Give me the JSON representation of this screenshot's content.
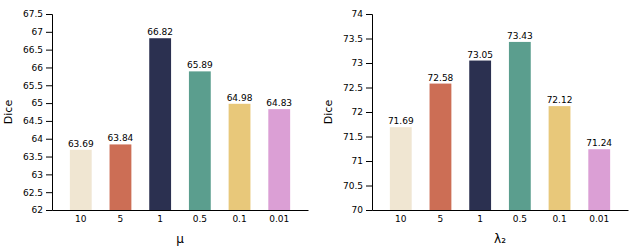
{
  "chart_data": [
    {
      "type": "bar",
      "categories": [
        "10",
        "5",
        "1",
        "0.5",
        "0.1",
        "0.01"
      ],
      "values": [
        63.69,
        63.84,
        66.82,
        65.89,
        64.98,
        64.83
      ],
      "colors": [
        "#f0e6d2",
        "#cc6e55",
        "#2b3050",
        "#5b9e8e",
        "#e8c87a",
        "#db9fd5"
      ],
      "xlabel": "μ",
      "ylabel": "Dice",
      "ylim": [
        62,
        67.5
      ],
      "yticks": [
        62,
        62.5,
        63,
        63.5,
        64,
        64.5,
        65,
        65.5,
        66,
        66.5,
        67,
        67.5
      ],
      "data_labels": true,
      "grid": false
    },
    {
      "type": "bar",
      "categories": [
        "10",
        "5",
        "1",
        "0.5",
        "0.1",
        "0.01"
      ],
      "values": [
        71.69,
        72.58,
        73.05,
        73.43,
        72.12,
        71.24
      ],
      "colors": [
        "#f0e6d2",
        "#cc6e55",
        "#2b3050",
        "#5b9e8e",
        "#e8c87a",
        "#db9fd5"
      ],
      "xlabel": "λ₂",
      "ylabel": "Dice",
      "ylim": [
        70,
        74
      ],
      "yticks": [
        70,
        70.5,
        71,
        71.5,
        72,
        72.5,
        73,
        73.5,
        74
      ],
      "data_labels": true,
      "grid": false
    }
  ]
}
